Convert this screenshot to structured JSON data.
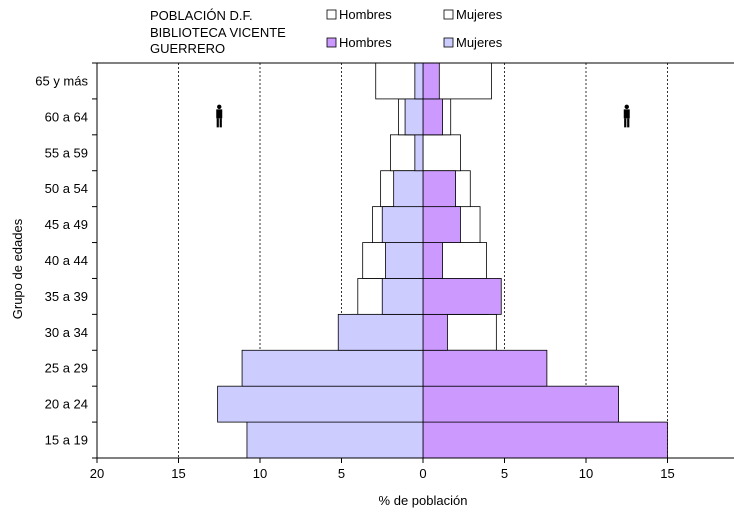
{
  "chart_data": {
    "type": "bar",
    "subtype": "population-pyramid",
    "xlabel": "% de población",
    "ylabel": "Grupo de edades",
    "xlim": [
      -20,
      20
    ],
    "x_ticks": [
      -20,
      -15,
      -10,
      -5,
      0,
      5,
      10,
      15
    ],
    "x_tick_labels": [
      "20",
      "15",
      "10",
      "5",
      "0",
      "5",
      "10",
      "15"
    ],
    "categories": [
      "15 a 19",
      "20 a 24",
      "25 a 29",
      "30 a 34",
      "35 a 39",
      "40 a 44",
      "45 a 49",
      "50 a 54",
      "55 a 59",
      "60 a 64",
      "65 y más"
    ],
    "grid": "vertical dotted at ±5, ±10, ±15",
    "legend": {
      "placement": "top",
      "groups": [
        {
          "title": "POBLACIÓN D.F.",
          "items": [
            {
              "label": "Hombres",
              "color": "#ffffff"
            },
            {
              "label": "Mujeres",
              "color": "#ffffff"
            }
          ]
        },
        {
          "title": "BIBLIOTECA VICENTE GUERRERO",
          "title_lines": [
            "BIBLIOTECA VICENTE",
            "GUERRERO"
          ],
          "items": [
            {
              "label": "Hombres",
              "color": "#cc99ff"
            },
            {
              "label": "Mujeres",
              "color": "#ccccff"
            }
          ]
        }
      ]
    },
    "series": [
      {
        "name": "POBLACIÓN D.F. Hombres",
        "side": "right",
        "color": "#ffffff",
        "values": [
          4.2,
          4.4,
          4.5,
          4.5,
          4.0,
          3.9,
          3.5,
          2.9,
          2.3,
          1.7,
          4.2
        ]
      },
      {
        "name": "POBLACIÓN D.F. Mujeres",
        "side": "left",
        "color": "#ffffff",
        "values": [
          4.2,
          4.4,
          4.4,
          4.4,
          4.0,
          3.7,
          3.1,
          2.6,
          2.0,
          1.5,
          2.9
        ]
      },
      {
        "name": "BIBLIOTECA VICENTE GUERRERO Hombres",
        "side": "right",
        "color": "#cc99ff",
        "values": [
          15.0,
          12.0,
          7.6,
          1.5,
          4.8,
          1.2,
          2.3,
          2.0,
          0,
          1.2,
          1.0
        ]
      },
      {
        "name": "BIBLIOTECA VICENTE GUERRERO Mujeres",
        "side": "left",
        "color": "#ccccff",
        "values": [
          10.8,
          12.6,
          11.1,
          5.2,
          2.5,
          2.3,
          2.5,
          1.8,
          0.5,
          1.1,
          0.5
        ]
      }
    ],
    "icons": [
      {
        "name": "man-icon",
        "x": 12.5,
        "category": "60 a 64"
      },
      {
        "name": "man-icon",
        "x": -12.5,
        "category": "60 a 64"
      }
    ]
  }
}
